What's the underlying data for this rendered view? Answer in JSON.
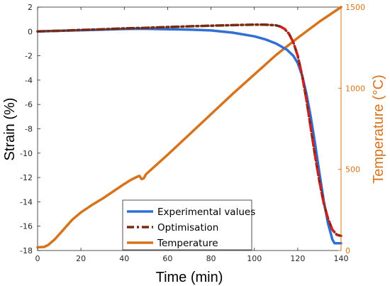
{
  "chart_data": {
    "type": "line",
    "xlabel": "Time (min)",
    "ylabel_left": "Strain (%)",
    "ylabel_right": "Temperature (°C)",
    "xlim": [
      0,
      140
    ],
    "ylim_left": [
      -18,
      2
    ],
    "ylim_right": [
      0,
      1500
    ],
    "x_ticks": [
      "0",
      "20",
      "40",
      "60",
      "80",
      "100",
      "120",
      "140"
    ],
    "y_left_ticks": [
      "2",
      "0",
      "-2",
      "-4",
      "-6",
      "-8",
      "-10",
      "-12",
      "-14",
      "-16",
      "-18"
    ],
    "y_right_ticks": [
      "0",
      "500",
      "1000",
      "1500"
    ],
    "grid": false,
    "legend_position": "bottom-center",
    "legend": [
      "Experimental values",
      "Optimisation",
      "Temperature"
    ],
    "colors": {
      "experimental": "#2f6fd6",
      "optimisation": "#7a2a12",
      "optimisation_accent": "#d41f1f",
      "temperature": "#d6731c",
      "right_axis": "#d6731c"
    },
    "series": [
      {
        "name": "Experimental values",
        "axis": "left",
        "x": [
          0,
          10,
          20,
          30,
          40,
          48,
          60,
          70,
          80,
          90,
          100,
          105,
          110,
          115,
          118,
          120,
          122,
          124,
          126,
          128,
          130,
          132,
          134,
          136,
          137,
          138,
          140
        ],
        "y": [
          0.0,
          0.05,
          0.1,
          0.15,
          0.2,
          0.22,
          0.18,
          0.15,
          0.08,
          -0.1,
          -0.4,
          -0.65,
          -1.0,
          -1.5,
          -2.0,
          -2.6,
          -3.6,
          -5.1,
          -7.0,
          -9.2,
          -11.6,
          -13.9,
          -15.8,
          -17.1,
          -17.4,
          -17.4,
          -17.4
        ]
      },
      {
        "name": "Optimisation",
        "axis": "left",
        "x": [
          0,
          10,
          20,
          30,
          40,
          50,
          60,
          70,
          80,
          90,
          100,
          105,
          110,
          112,
          114,
          116,
          118,
          120,
          122,
          124,
          126,
          128,
          130,
          132,
          134,
          136,
          138,
          140
        ],
        "y": [
          0.0,
          0.05,
          0.12,
          0.18,
          0.25,
          0.3,
          0.36,
          0.42,
          0.47,
          0.52,
          0.56,
          0.56,
          0.5,
          0.4,
          0.2,
          -0.2,
          -0.9,
          -2.0,
          -3.6,
          -5.6,
          -7.9,
          -10.2,
          -12.3,
          -14.1,
          -15.4,
          -16.3,
          -16.7,
          -16.8
        ]
      },
      {
        "name": "Temperature",
        "axis": "right",
        "x": [
          0,
          3,
          5,
          8,
          12,
          16,
          20,
          25,
          30,
          35,
          40,
          43,
          46,
          47,
          48,
          49,
          50,
          60,
          70,
          80,
          90,
          100,
          110,
          120,
          130,
          140
        ],
        "y": [
          20,
          22,
          35,
          70,
          130,
          190,
          235,
          280,
          320,
          365,
          410,
          435,
          455,
          460,
          440,
          445,
          470,
          590,
          715,
          840,
          965,
          1085,
          1205,
          1310,
          1410,
          1500
        ]
      }
    ]
  }
}
